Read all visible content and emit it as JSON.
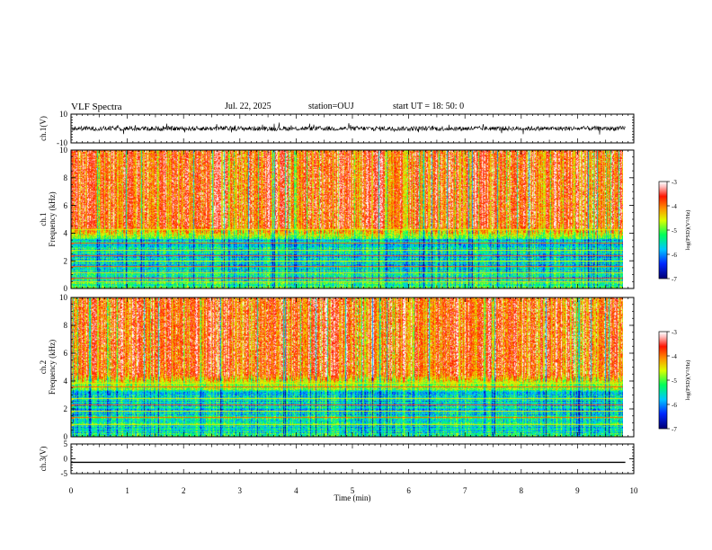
{
  "header": {
    "title": "VLF Spectra",
    "date": "Jul. 22, 2025",
    "station": "station=OUJ",
    "start": "start UT = 18: 50: 0"
  },
  "chart_data": [
    {
      "type": "line",
      "id": "ch1-waveform",
      "ylabel": "ch.1(V)",
      "ylim": [
        -10,
        10
      ],
      "yticks": [
        "10",
        "-10"
      ],
      "xlim": [
        0,
        10
      ],
      "trace_x_end": 9.85,
      "baseline": 0,
      "amplitude": 1.6,
      "line_color": "#000000"
    },
    {
      "type": "heatmap",
      "id": "ch1-spectrogram",
      "ylabel_line1": "ch.1",
      "ylabel_line2": "Frequency (kHz)",
      "ylim": [
        0,
        10
      ],
      "yticks": [
        "0",
        "2",
        "4",
        "6",
        "8",
        "10"
      ],
      "xlim": [
        0,
        10
      ],
      "data_x_end": 9.85,
      "colorbar": {
        "label": "log(PSD)(V²/Hz)",
        "range": [
          -7,
          -3
        ],
        "ticks": [
          "-3",
          "-4",
          "-5",
          "-6",
          "-7"
        ],
        "colors": [
          "#000080",
          "#0040ff",
          "#00e0ff",
          "#00ff60",
          "#ffff00",
          "#ff8000",
          "#ff0000",
          "#ffd0d0",
          "#ffffff"
        ]
      },
      "bands_khz": [
        0.5,
        0.8,
        1.2,
        1.6,
        2.0,
        2.4,
        2.8,
        3.3,
        4.3
      ]
    },
    {
      "type": "heatmap",
      "id": "ch2-spectrogram",
      "ylabel_line1": "ch.2",
      "ylabel_line2": "Frequency (kHz)",
      "ylim": [
        0,
        10
      ],
      "yticks": [
        "0",
        "2",
        "4",
        "6",
        "8",
        "10"
      ],
      "xlim": [
        0,
        10
      ],
      "data_x_end": 9.85,
      "colorbar": {
        "label": "log(PSD)(V²/Hz)",
        "range": [
          -7,
          -3
        ],
        "ticks": [
          "-3",
          "-4",
          "-5",
          "-6",
          "-7"
        ]
      },
      "bands_khz": [
        0.9,
        1.4,
        1.9,
        2.3,
        2.8,
        3.6,
        3.9
      ]
    },
    {
      "type": "line",
      "id": "ch3-waveform",
      "ylabel": "ch.3(V)",
      "ylim": [
        -5,
        5
      ],
      "yticks": [
        "5",
        "0",
        "-5"
      ],
      "xlim": [
        0,
        10
      ],
      "trace_x_end": 9.85,
      "constant_value": -1.2,
      "line_color": "#000000"
    }
  ],
  "xaxis": {
    "label": "Time (min)",
    "ticks": [
      "0",
      "1",
      "2",
      "3",
      "4",
      "5",
      "6",
      "7",
      "8",
      "9",
      "10"
    ]
  }
}
